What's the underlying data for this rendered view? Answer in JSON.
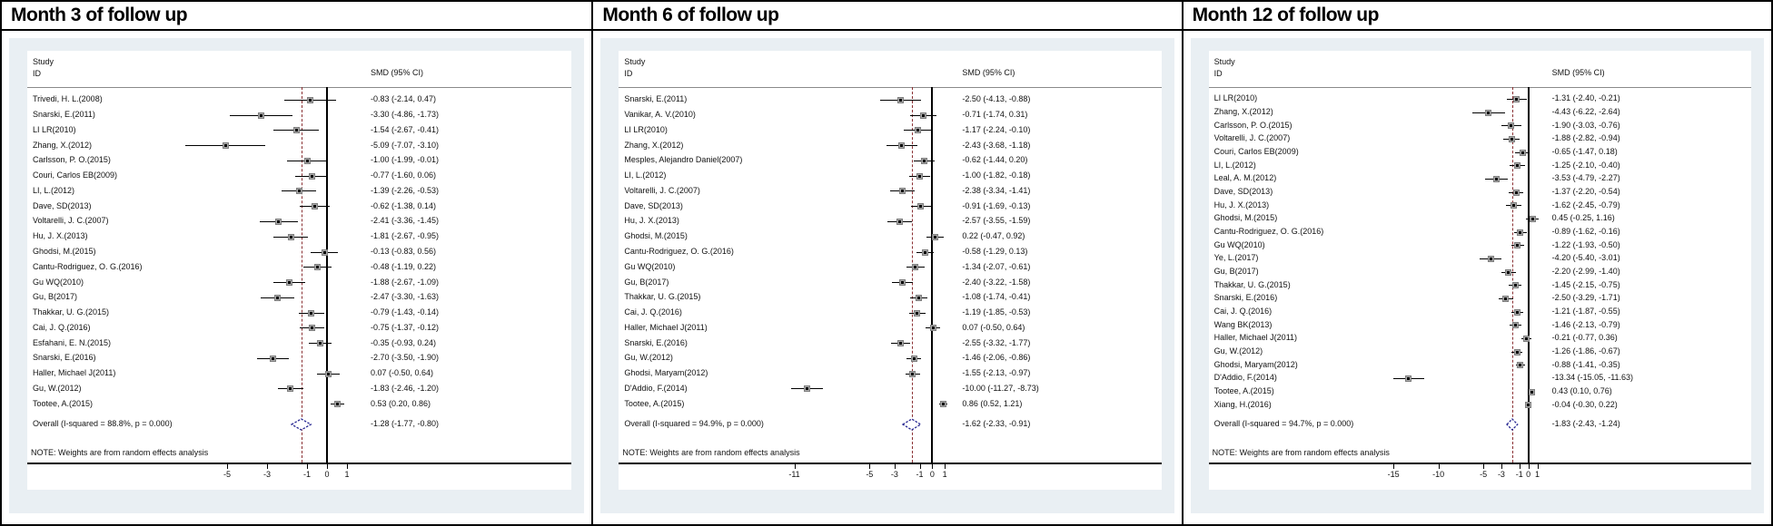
{
  "colors": {
    "panel_bg": "#e9eff3",
    "dashed_line": "#8a3033",
    "diamond": "#262691",
    "marker": "#a9a9a9",
    "axis": "#000000"
  },
  "chart_data": [
    {
      "type": "forest",
      "title": "Month 3 of follow up",
      "study_header": "Study\nID",
      "smd_header": "SMD (95% CI)",
      "note": "NOTE: Weights are from random effects analysis",
      "axis_ticks": [
        -5,
        -3,
        -1,
        0,
        1
      ],
      "studies": [
        {
          "id": "Trivedi, H. L.(2008)",
          "smd": -0.83,
          "lo": -2.14,
          "hi": 0.47,
          "ci_text": "-0.83 (-2.14, 0.47)"
        },
        {
          "id": "Snarski, E.(2011)",
          "smd": -3.3,
          "lo": -4.86,
          "hi": -1.73,
          "ci_text": "-3.30 (-4.86, -1.73)"
        },
        {
          "id": "LI LR(2010)",
          "smd": -1.54,
          "lo": -2.67,
          "hi": -0.41,
          "ci_text": "-1.54 (-2.67, -0.41)"
        },
        {
          "id": "Zhang, X.(2012)",
          "smd": -5.09,
          "lo": -7.07,
          "hi": -3.1,
          "ci_text": "-5.09 (-7.07, -3.10)"
        },
        {
          "id": "Carlsson, P. O.(2015)",
          "smd": -1.0,
          "lo": -1.99,
          "hi": -0.01,
          "ci_text": "-1.00 (-1.99, -0.01)"
        },
        {
          "id": "Couri, Carlos EB(2009)",
          "smd": -0.77,
          "lo": -1.6,
          "hi": 0.06,
          "ci_text": "-0.77 (-1.60, 0.06)"
        },
        {
          "id": "LI, L.(2012)",
          "smd": -1.39,
          "lo": -2.26,
          "hi": -0.53,
          "ci_text": "-1.39 (-2.26, -0.53)"
        },
        {
          "id": "Dave, SD(2013)",
          "smd": -0.62,
          "lo": -1.38,
          "hi": 0.14,
          "ci_text": "-0.62 (-1.38, 0.14)"
        },
        {
          "id": "Voltarelli, J. C.(2007)",
          "smd": -2.41,
          "lo": -3.36,
          "hi": -1.45,
          "ci_text": "-2.41 (-3.36, -1.45)"
        },
        {
          "id": "Hu, J. X.(2013)",
          "smd": -1.81,
          "lo": -2.67,
          "hi": -0.95,
          "ci_text": "-1.81 (-2.67, -0.95)"
        },
        {
          "id": "Ghodsi, M.(2015)",
          "smd": -0.13,
          "lo": -0.83,
          "hi": 0.56,
          "ci_text": "-0.13 (-0.83, 0.56)"
        },
        {
          "id": "Cantu-Rodriguez, O. G.(2016)",
          "smd": -0.48,
          "lo": -1.19,
          "hi": 0.22,
          "ci_text": "-0.48 (-1.19, 0.22)"
        },
        {
          "id": "Gu WQ(2010)",
          "smd": -1.88,
          "lo": -2.67,
          "hi": -1.09,
          "ci_text": "-1.88 (-2.67, -1.09)"
        },
        {
          "id": "Gu, B(2017)",
          "smd": -2.47,
          "lo": -3.3,
          "hi": -1.63,
          "ci_text": "-2.47 (-3.30, -1.63)"
        },
        {
          "id": "Thakkar, U. G.(2015)",
          "smd": -0.79,
          "lo": -1.43,
          "hi": -0.14,
          "ci_text": "-0.79 (-1.43, -0.14)"
        },
        {
          "id": "Cai, J. Q.(2016)",
          "smd": -0.75,
          "lo": -1.37,
          "hi": -0.12,
          "ci_text": "-0.75 (-1.37, -0.12)"
        },
        {
          "id": "Esfahani, E. N.(2015)",
          "smd": -0.35,
          "lo": -0.93,
          "hi": 0.24,
          "ci_text": "-0.35 (-0.93, 0.24)"
        },
        {
          "id": "Snarski, E.(2016)",
          "smd": -2.7,
          "lo": -3.5,
          "hi": -1.9,
          "ci_text": "-2.70 (-3.50, -1.90)"
        },
        {
          "id": "Haller, Michael J(2011)",
          "smd": 0.07,
          "lo": -0.5,
          "hi": 0.64,
          "ci_text": "0.07 (-0.50, 0.64)"
        },
        {
          "id": "Gu, W.(2012)",
          "smd": -1.83,
          "lo": -2.46,
          "hi": -1.2,
          "ci_text": "-1.83 (-2.46, -1.20)"
        },
        {
          "id": "Tootee, A.(2015)",
          "smd": 0.53,
          "lo": 0.2,
          "hi": 0.86,
          "ci_text": "0.53 (0.20, 0.86)"
        }
      ],
      "overall": {
        "label": "Overall  (I-squared = 88.8%, p = 0.000)",
        "smd": -1.28,
        "lo": -1.77,
        "hi": -0.8,
        "ci_text": "-1.28 (-1.77, -0.80)"
      }
    },
    {
      "type": "forest",
      "title": "Month 6 of follow up",
      "study_header": "Study\nID",
      "smd_header": "SMD (95% CI)",
      "note": "NOTE: Weights are from random effects analysis",
      "axis_ticks": [
        -11,
        -5,
        -3,
        -1,
        0,
        1
      ],
      "studies": [
        {
          "id": "Snarski, E.(2011)",
          "smd": -2.5,
          "lo": -4.13,
          "hi": -0.88,
          "ci_text": "-2.50 (-4.13, -0.88)"
        },
        {
          "id": "Vanikar, A. V.(2010)",
          "smd": -0.71,
          "lo": -1.74,
          "hi": 0.31,
          "ci_text": "-0.71 (-1.74, 0.31)"
        },
        {
          "id": "LI LR(2010)",
          "smd": -1.17,
          "lo": -2.24,
          "hi": -0.1,
          "ci_text": "-1.17 (-2.24, -0.10)"
        },
        {
          "id": "Zhang, X.(2012)",
          "smd": -2.43,
          "lo": -3.68,
          "hi": -1.18,
          "ci_text": "-2.43 (-3.68, -1.18)"
        },
        {
          "id": "Mesples, Alejandro Daniel(2007)",
          "smd": -0.62,
          "lo": -1.44,
          "hi": 0.2,
          "ci_text": "-0.62 (-1.44, 0.20)"
        },
        {
          "id": "LI, L.(2012)",
          "smd": -1.0,
          "lo": -1.82,
          "hi": -0.18,
          "ci_text": "-1.00 (-1.82, -0.18)"
        },
        {
          "id": "Voltarelli, J. C.(2007)",
          "smd": -2.38,
          "lo": -3.34,
          "hi": -1.41,
          "ci_text": "-2.38 (-3.34, -1.41)"
        },
        {
          "id": "Dave, SD(2013)",
          "smd": -0.91,
          "lo": -1.69,
          "hi": -0.13,
          "ci_text": "-0.91 (-1.69, -0.13)"
        },
        {
          "id": "Hu, J. X.(2013)",
          "smd": -2.57,
          "lo": -3.55,
          "hi": -1.59,
          "ci_text": "-2.57 (-3.55, -1.59)"
        },
        {
          "id": "Ghodsi, M.(2015)",
          "smd": 0.22,
          "lo": -0.47,
          "hi": 0.92,
          "ci_text": "0.22 (-0.47, 0.92)"
        },
        {
          "id": "Cantu-Rodriguez, O. G.(2016)",
          "smd": -0.58,
          "lo": -1.29,
          "hi": 0.13,
          "ci_text": "-0.58 (-1.29, 0.13)"
        },
        {
          "id": "Gu WQ(2010)",
          "smd": -1.34,
          "lo": -2.07,
          "hi": -0.61,
          "ci_text": "-1.34 (-2.07, -0.61)"
        },
        {
          "id": "Gu, B(2017)",
          "smd": -2.4,
          "lo": -3.22,
          "hi": -1.58,
          "ci_text": "-2.40 (-3.22, -1.58)"
        },
        {
          "id": "Thakkar, U. G.(2015)",
          "smd": -1.08,
          "lo": -1.74,
          "hi": -0.41,
          "ci_text": "-1.08 (-1.74, -0.41)"
        },
        {
          "id": "Cai, J. Q.(2016)",
          "smd": -1.19,
          "lo": -1.85,
          "hi": -0.53,
          "ci_text": "-1.19 (-1.85, -0.53)"
        },
        {
          "id": "Haller, Michael J(2011)",
          "smd": 0.07,
          "lo": -0.5,
          "hi": 0.64,
          "ci_text": "0.07 (-0.50, 0.64)"
        },
        {
          "id": "Snarski, E.(2016)",
          "smd": -2.55,
          "lo": -3.32,
          "hi": -1.77,
          "ci_text": "-2.55 (-3.32, -1.77)"
        },
        {
          "id": "Gu, W.(2012)",
          "smd": -1.46,
          "lo": -2.06,
          "hi": -0.86,
          "ci_text": "-1.46 (-2.06, -0.86)"
        },
        {
          "id": "Ghodsi, Maryam(2012)",
          "smd": -1.55,
          "lo": -2.13,
          "hi": -0.97,
          "ci_text": "-1.55 (-2.13, -0.97)"
        },
        {
          "id": "D'Addio, F.(2014)",
          "smd": -10.0,
          "lo": -11.27,
          "hi": -8.73,
          "ci_text": "-10.00 (-11.27, -8.73)"
        },
        {
          "id": "Tootee, A.(2015)",
          "smd": 0.86,
          "lo": 0.52,
          "hi": 1.21,
          "ci_text": "0.86 (0.52, 1.21)"
        }
      ],
      "overall": {
        "label": "Overall  (I-squared = 94.9%, p = 0.000)",
        "smd": -1.62,
        "lo": -2.33,
        "hi": -0.91,
        "ci_text": "-1.62 (-2.33, -0.91)"
      }
    },
    {
      "type": "forest",
      "title": "Month 12 of follow up",
      "study_header": "Study\nID",
      "smd_header": "SMD (95% CI)",
      "note": "NOTE: Weights are from random effects analysis",
      "axis_ticks": [
        -15,
        -10,
        -5,
        -3,
        -1,
        0,
        1
      ],
      "studies": [
        {
          "id": "LI LR(2010)",
          "smd": -1.31,
          "lo": -2.4,
          "hi": -0.21,
          "ci_text": "-1.31 (-2.40, -0.21)"
        },
        {
          "id": "Zhang, X.(2012)",
          "smd": -4.43,
          "lo": -6.22,
          "hi": -2.64,
          "ci_text": "-4.43 (-6.22, -2.64)"
        },
        {
          "id": "Carlsson, P. O.(2015)",
          "smd": -1.9,
          "lo": -3.03,
          "hi": -0.76,
          "ci_text": "-1.90 (-3.03, -0.76)"
        },
        {
          "id": "Voltarelli, J. C.(2007)",
          "smd": -1.88,
          "lo": -2.82,
          "hi": -0.94,
          "ci_text": "-1.88 (-2.82, -0.94)"
        },
        {
          "id": "Couri, Carlos EB(2009)",
          "smd": -0.65,
          "lo": -1.47,
          "hi": 0.18,
          "ci_text": "-0.65 (-1.47, 0.18)"
        },
        {
          "id": "LI, L.(2012)",
          "smd": -1.25,
          "lo": -2.1,
          "hi": -0.4,
          "ci_text": "-1.25 (-2.10, -0.40)"
        },
        {
          "id": "Leal, A. M.(2012)",
          "smd": -3.53,
          "lo": -4.79,
          "hi": -2.27,
          "ci_text": "-3.53 (-4.79, -2.27)"
        },
        {
          "id": "Dave, SD(2013)",
          "smd": -1.37,
          "lo": -2.2,
          "hi": -0.54,
          "ci_text": "-1.37 (-2.20, -0.54)"
        },
        {
          "id": "Hu, J. X.(2013)",
          "smd": -1.62,
          "lo": -2.45,
          "hi": -0.79,
          "ci_text": "-1.62 (-2.45, -0.79)"
        },
        {
          "id": "Ghodsi, M.(2015)",
          "smd": 0.45,
          "lo": -0.25,
          "hi": 1.16,
          "ci_text": "0.45 (-0.25, 1.16)"
        },
        {
          "id": "Cantu-Rodriguez, O. G.(2016)",
          "smd": -0.89,
          "lo": -1.62,
          "hi": -0.16,
          "ci_text": "-0.89 (-1.62, -0.16)"
        },
        {
          "id": "Gu WQ(2010)",
          "smd": -1.22,
          "lo": -1.93,
          "hi": -0.5,
          "ci_text": "-1.22 (-1.93, -0.50)"
        },
        {
          "id": "Ye, L.(2017)",
          "smd": -4.2,
          "lo": -5.4,
          "hi": -3.01,
          "ci_text": "-4.20 (-5.40, -3.01)"
        },
        {
          "id": "Gu, B(2017)",
          "smd": -2.2,
          "lo": -2.99,
          "hi": -1.4,
          "ci_text": "-2.20 (-2.99, -1.40)"
        },
        {
          "id": "Thakkar, U. G.(2015)",
          "smd": -1.45,
          "lo": -2.15,
          "hi": -0.75,
          "ci_text": "-1.45 (-2.15, -0.75)"
        },
        {
          "id": "Snarski, E.(2016)",
          "smd": -2.5,
          "lo": -3.29,
          "hi": -1.71,
          "ci_text": "-2.50 (-3.29, -1.71)"
        },
        {
          "id": "Cai, J. Q.(2016)",
          "smd": -1.21,
          "lo": -1.87,
          "hi": -0.55,
          "ci_text": "-1.21 (-1.87, -0.55)"
        },
        {
          "id": "Wang BK(2013)",
          "smd": -1.46,
          "lo": -2.13,
          "hi": -0.79,
          "ci_text": "-1.46 (-2.13, -0.79)"
        },
        {
          "id": "Haller, Michael J(2011)",
          "smd": -0.21,
          "lo": -0.77,
          "hi": 0.36,
          "ci_text": "-0.21 (-0.77, 0.36)"
        },
        {
          "id": "Gu, W.(2012)",
          "smd": -1.26,
          "lo": -1.86,
          "hi": -0.67,
          "ci_text": "-1.26 (-1.86, -0.67)"
        },
        {
          "id": "Ghodsi, Maryam(2012)",
          "smd": -0.88,
          "lo": -1.41,
          "hi": -0.35,
          "ci_text": "-0.88 (-1.41, -0.35)"
        },
        {
          "id": "D'Addio, F.(2014)",
          "smd": -13.34,
          "lo": -15.05,
          "hi": -11.63,
          "ci_text": "-13.34 (-15.05, -11.63)"
        },
        {
          "id": "Tootee, A.(2015)",
          "smd": 0.43,
          "lo": 0.1,
          "hi": 0.76,
          "ci_text": "0.43 (0.10, 0.76)"
        },
        {
          "id": "Xiang, H.(2016)",
          "smd": -0.04,
          "lo": -0.3,
          "hi": 0.22,
          "ci_text": "-0.04 (-0.30, 0.22)"
        }
      ],
      "overall": {
        "label": "Overall  (I-squared = 94.7%, p = 0.000)",
        "smd": -1.83,
        "lo": -2.43,
        "hi": -1.24,
        "ci_text": "-1.83 (-2.43, -1.24)"
      }
    }
  ]
}
